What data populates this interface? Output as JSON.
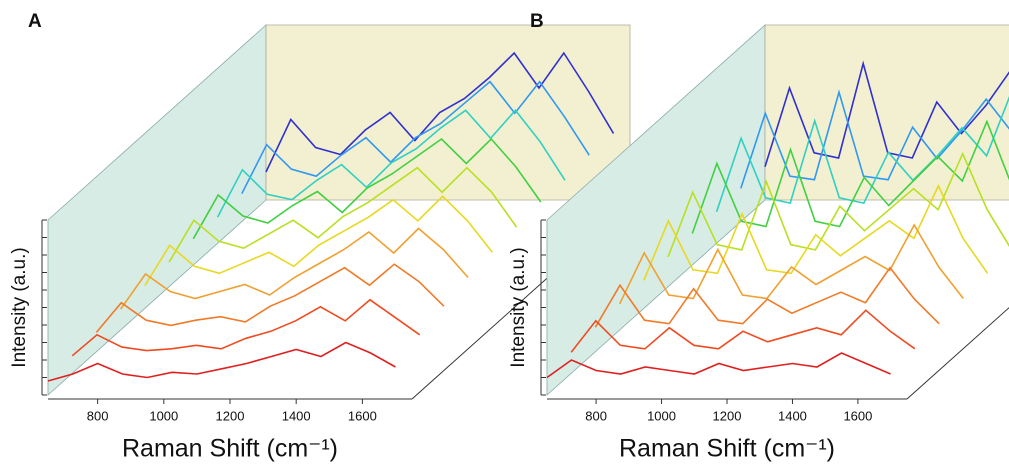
{
  "chart_data": [
    {
      "type": "waterfall",
      "panel_label": "A",
      "xlabel": "Raman Shift (cm⁻¹)",
      "ylabel": "Intensity (a.u.)",
      "x": [
        650,
        725,
        800,
        875,
        950,
        1025,
        1100,
        1175,
        1250,
        1325,
        1400,
        1475,
        1550,
        1625,
        1700
      ],
      "xlim": [
        650,
        1750
      ],
      "xticks": [
        800,
        1000,
        1200,
        1400,
        1600
      ],
      "ylim": [
        0,
        10
      ],
      "yticks": [
        0,
        1,
        2,
        3,
        4,
        5,
        6,
        7,
        8,
        9,
        10
      ],
      "series": [
        {
          "color": "#e02020",
          "values": [
            0.8,
            1.2,
            1.8,
            1.2,
            1.0,
            1.3,
            1.2,
            1.5,
            1.8,
            2.2,
            2.6,
            2.2,
            3.0,
            2.4,
            1.6
          ]
        },
        {
          "color": "#f04a20",
          "values": [
            1.0,
            2.2,
            1.5,
            1.3,
            1.4,
            1.6,
            1.4,
            2.0,
            2.4,
            3.0,
            3.8,
            3.0,
            4.2,
            3.2,
            2.2
          ]
        },
        {
          "color": "#f07a28",
          "values": [
            1.1,
            2.8,
            1.8,
            1.5,
            1.8,
            2.0,
            1.7,
            2.6,
            3.2,
            4.0,
            4.8,
            3.8,
            5.0,
            4.0,
            2.6
          ]
        },
        {
          "color": "#f0a030",
          "values": [
            1.2,
            3.2,
            2.2,
            1.8,
            2.2,
            2.6,
            2.0,
            3.0,
            3.8,
            4.6,
            5.6,
            4.4,
            5.8,
            4.6,
            3.0
          ]
        },
        {
          "color": "#e8d820",
          "values": [
            1.3,
            3.6,
            2.4,
            2.0,
            2.6,
            3.2,
            2.4,
            3.6,
            4.4,
            5.2,
            6.2,
            5.0,
            6.4,
            5.0,
            3.2
          ]
        },
        {
          "color": "#b8e020",
          "values": [
            1.4,
            3.8,
            2.6,
            2.2,
            3.0,
            3.8,
            2.8,
            4.0,
            4.8,
            5.8,
            6.8,
            5.4,
            6.8,
            5.4,
            3.4
          ]
        },
        {
          "color": "#40d040",
          "values": [
            1.5,
            4.0,
            2.8,
            2.4,
            3.4,
            4.2,
            3.0,
            4.4,
            5.2,
            6.2,
            7.2,
            5.8,
            7.2,
            5.6,
            3.6
          ]
        },
        {
          "color": "#30d0c0",
          "values": [
            1.5,
            4.2,
            2.8,
            2.5,
            3.6,
            4.5,
            3.2,
            4.6,
            5.4,
            6.6,
            7.6,
            6.0,
            7.6,
            5.8,
            3.6
          ]
        },
        {
          "color": "#3098f0",
          "values": [
            1.6,
            4.4,
            3.0,
            2.6,
            3.8,
            4.8,
            3.4,
            4.8,
            5.6,
            6.8,
            8.0,
            6.2,
            8.0,
            6.0,
            3.8
          ]
        },
        {
          "color": "#3030d0",
          "values": [
            1.6,
            4.6,
            3.0,
            2.6,
            4.0,
            5.0,
            3.4,
            5.0,
            5.8,
            7.0,
            8.4,
            6.4,
            8.4,
            6.2,
            3.8
          ]
        }
      ]
    },
    {
      "type": "waterfall",
      "panel_label": "B",
      "xlabel": "Raman Shift (cm⁻¹)",
      "ylabel": "Intensity (a.u.)",
      "x": [
        650,
        725,
        800,
        875,
        950,
        1025,
        1100,
        1175,
        1250,
        1325,
        1400,
        1475,
        1550,
        1625,
        1700
      ],
      "xlim": [
        650,
        1750
      ],
      "xticks": [
        800,
        1000,
        1200,
        1400,
        1600
      ],
      "ylim": [
        0,
        10
      ],
      "yticks": [
        0,
        1,
        2,
        3,
        4,
        5,
        6,
        7,
        8,
        9,
        10
      ],
      "series": [
        {
          "color": "#e02020",
          "values": [
            1.0,
            2.0,
            1.4,
            1.2,
            1.6,
            1.4,
            1.2,
            1.8,
            1.4,
            1.6,
            1.8,
            1.6,
            2.4,
            1.8,
            1.2
          ]
        },
        {
          "color": "#f04a20",
          "values": [
            1.2,
            3.0,
            1.6,
            1.4,
            2.6,
            1.6,
            1.4,
            2.4,
            1.8,
            2.2,
            2.6,
            2.2,
            3.6,
            2.4,
            1.4
          ]
        },
        {
          "color": "#f07a28",
          "values": [
            1.4,
            3.8,
            1.8,
            1.6,
            3.6,
            1.8,
            1.6,
            3.0,
            2.2,
            2.8,
            3.4,
            2.8,
            4.8,
            3.0,
            1.6
          ]
        },
        {
          "color": "#f0a030",
          "values": [
            1.5,
            4.4,
            2.0,
            1.8,
            4.6,
            2.0,
            1.8,
            3.6,
            2.6,
            3.4,
            4.2,
            3.4,
            6.0,
            3.6,
            1.8
          ]
        },
        {
          "color": "#e8d820",
          "values": [
            1.6,
            5.0,
            2.2,
            2.0,
            5.4,
            2.2,
            2.0,
            4.2,
            3.0,
            4.0,
            5.0,
            4.0,
            7.0,
            4.0,
            2.0
          ]
        },
        {
          "color": "#b8e020",
          "values": [
            1.7,
            5.4,
            2.4,
            2.1,
            6.0,
            2.4,
            2.1,
            4.6,
            3.2,
            4.4,
            5.6,
            4.4,
            7.6,
            4.4,
            2.1
          ]
        },
        {
          "color": "#40d040",
          "values": [
            1.8,
            5.8,
            2.5,
            2.2,
            6.6,
            2.5,
            2.2,
            5.0,
            3.4,
            4.8,
            6.2,
            4.8,
            8.2,
            4.6,
            2.2
          ]
        },
        {
          "color": "#30d0c0",
          "values": [
            1.8,
            6.0,
            2.6,
            2.3,
            7.0,
            2.6,
            2.3,
            5.2,
            3.6,
            5.0,
            6.6,
            5.0,
            8.6,
            4.8,
            2.3
          ]
        },
        {
          "color": "#3098f0",
          "values": [
            1.9,
            6.2,
            2.6,
            2.4,
            7.4,
            2.6,
            2.4,
            5.4,
            3.6,
            5.2,
            7.0,
            5.2,
            9.0,
            5.0,
            2.4
          ]
        },
        {
          "color": "#3030d0",
          "values": [
            1.9,
            6.4,
            2.7,
            2.4,
            7.8,
            2.7,
            2.4,
            5.6,
            3.8,
            5.4,
            7.4,
            5.4,
            9.4,
            5.2,
            2.4
          ]
        }
      ]
    }
  ]
}
